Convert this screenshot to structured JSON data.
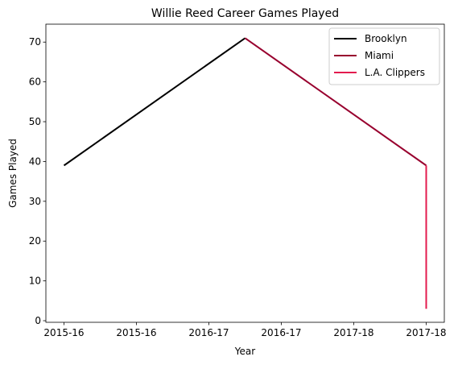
{
  "chart_data": {
    "type": "line",
    "title": "Willie Reed Career Games Played",
    "xlabel": "Year",
    "ylabel": "Games Played",
    "x_ticks": [
      "2015-16",
      "2015-16",
      "2016-17",
      "2016-17",
      "2017-18",
      "2017-18"
    ],
    "x_tick_positions": [
      0,
      0.4,
      0.8,
      1.2,
      1.6,
      2.0
    ],
    "xlim": [
      -0.1,
      2.1
    ],
    "ylim": [
      -0.4,
      74.5
    ],
    "y_ticks": [
      0,
      10,
      20,
      30,
      40,
      50,
      60,
      70
    ],
    "grid": false,
    "legend_position": "top-right",
    "series": [
      {
        "name": "Brooklyn",
        "color": "#000000",
        "points": [
          [
            0,
            39
          ],
          [
            1,
            71
          ]
        ]
      },
      {
        "name": "Miami",
        "color": "#98002E",
        "points": [
          [
            1,
            71
          ],
          [
            2,
            39
          ]
        ]
      },
      {
        "name": "L.A. Clippers",
        "color": "#E31B4E",
        "points": [
          [
            2,
            39
          ],
          [
            2,
            3
          ]
        ]
      }
    ]
  }
}
